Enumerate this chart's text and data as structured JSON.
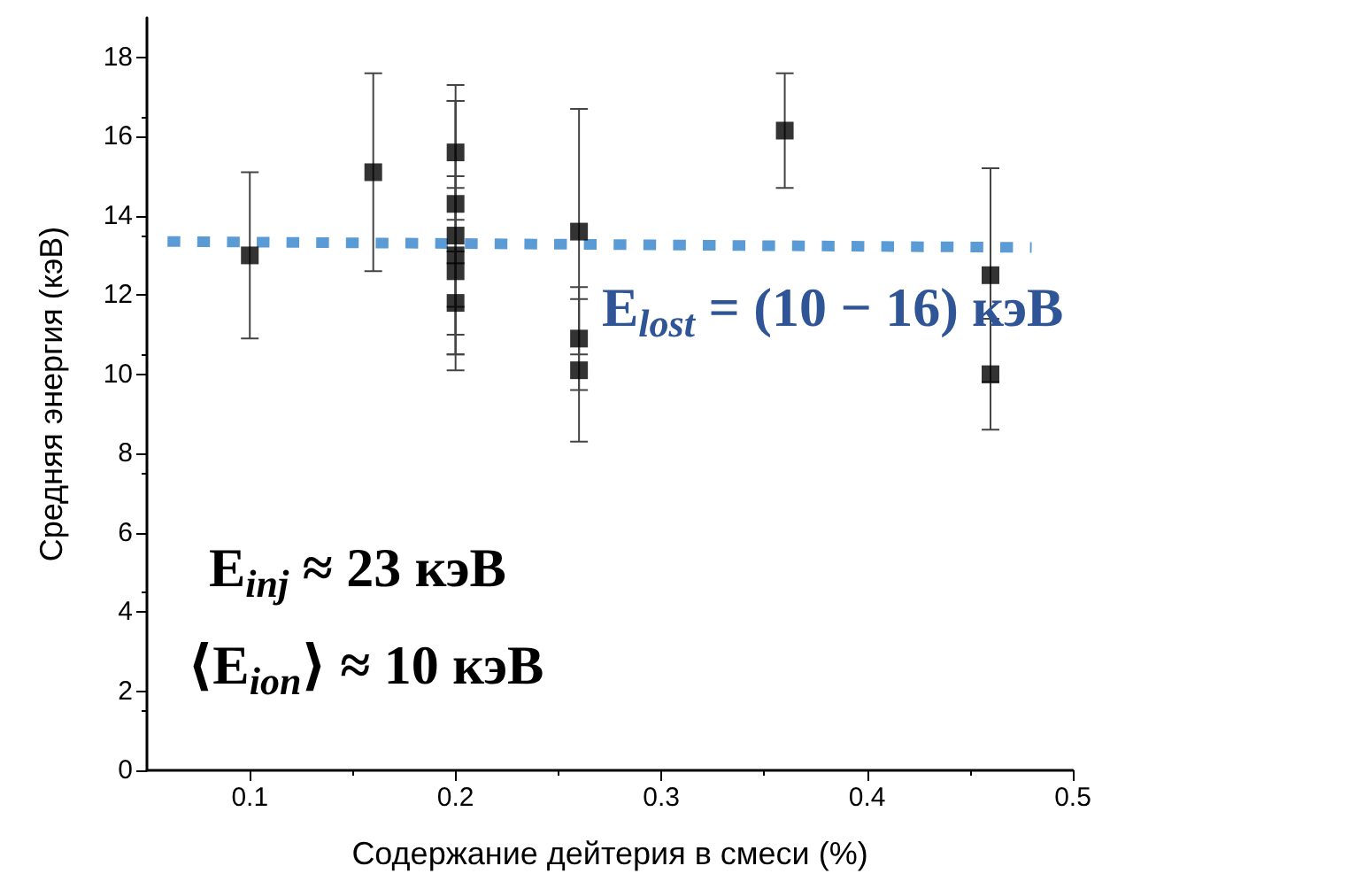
{
  "chart_data": {
    "type": "scatter",
    "xlabel": "Содержание дейтерия в смеси (%)",
    "ylabel": "Средняя энергия (кэВ)",
    "xlim": [
      0.05,
      0.5
    ],
    "xticks": [
      0.1,
      0.2,
      0.3,
      0.4,
      0.5
    ],
    "ylim": [
      0,
      19
    ],
    "yticks": [
      0,
      2,
      4,
      6,
      8,
      10,
      12,
      14,
      16,
      18
    ],
    "marker": "square",
    "series": [
      {
        "color": "#000000",
        "x": [
          0.1,
          0.16,
          0.2,
          0.2,
          0.2,
          0.2,
          0.2,
          0.2,
          0.26,
          0.26,
          0.26,
          0.36,
          0.46,
          0.46
        ],
        "values": [
          13.0,
          15.1,
          15.6,
          14.3,
          13.5,
          13.0,
          12.6,
          11.8,
          13.6,
          10.9,
          10.1,
          16.15,
          12.5,
          10.0
        ],
        "errors": [
          2.1,
          2.5,
          1.7,
          2.6,
          3.4,
          2.0,
          2.1,
          1.3,
          3.1,
          1.3,
          1.8,
          1.45,
          2.7,
          1.4
        ]
      },
      {
        "type": "line",
        "color": "#5b9bd5",
        "line_style": "dotted",
        "marker": "none",
        "x": [
          0.06,
          0.48
        ],
        "values": [
          13.35,
          13.2
        ]
      }
    ],
    "annotations": [
      "E$_{lost}$ = (10 − 16) кэВ",
      "E$_{inj}$ ≈ 23 кэВ",
      "⟨E$_{ion}$⟩ ≈ 10 кэВ"
    ]
  }
}
